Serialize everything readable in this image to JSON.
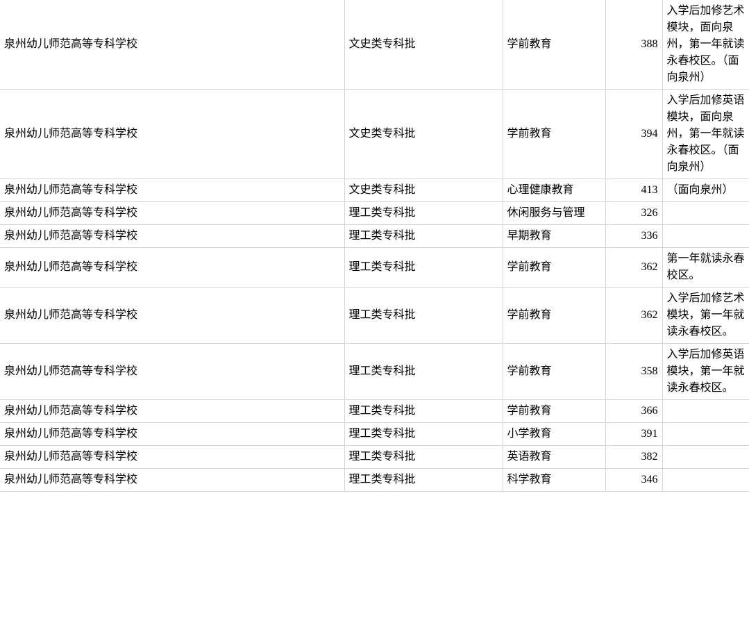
{
  "table": {
    "columns": {
      "school_width": 496,
      "category_width": 228,
      "major_width": 148,
      "score_width": 82,
      "remark_width": 125
    },
    "border_color": "#d4d4d4",
    "background_color": "#ffffff",
    "text_color": "#000000",
    "font_size": 16,
    "rows": [
      {
        "school": "泉州幼儿师范高等专科学校",
        "category": "文史类专科批",
        "major": "学前教育",
        "score": "388",
        "remark": "入学后加修艺术模块，面向泉州，第一年就读永春校区。（面向泉州）"
      },
      {
        "school": "泉州幼儿师范高等专科学校",
        "category": "文史类专科批",
        "major": "学前教育",
        "score": "394",
        "remark": "入学后加修英语模块，面向泉州，第一年就读永春校区。（面向泉州）"
      },
      {
        "school": "泉州幼儿师范高等专科学校",
        "category": "文史类专科批",
        "major": "心理健康教育",
        "score": "413",
        "remark": "（面向泉州）"
      },
      {
        "school": "泉州幼儿师范高等专科学校",
        "category": "理工类专科批",
        "major": "休闲服务与管理",
        "score": "326",
        "remark": ""
      },
      {
        "school": "泉州幼儿师范高等专科学校",
        "category": "理工类专科批",
        "major": "早期教育",
        "score": "336",
        "remark": ""
      },
      {
        "school": "泉州幼儿师范高等专科学校",
        "category": "理工类专科批",
        "major": "学前教育",
        "score": "362",
        "remark": "第一年就读永春校区。"
      },
      {
        "school": "泉州幼儿师范高等专科学校",
        "category": "理工类专科批",
        "major": "学前教育",
        "score": "362",
        "remark": "入学后加修艺术模块，第一年就读永春校区。"
      },
      {
        "school": "泉州幼儿师范高等专科学校",
        "category": "理工类专科批",
        "major": "学前教育",
        "score": "358",
        "remark": "入学后加修英语模块，第一年就读永春校区。"
      },
      {
        "school": "泉州幼儿师范高等专科学校",
        "category": "理工类专科批",
        "major": "学前教育",
        "score": "366",
        "remark": ""
      },
      {
        "school": "泉州幼儿师范高等专科学校",
        "category": "理工类专科批",
        "major": "小学教育",
        "score": "391",
        "remark": ""
      },
      {
        "school": "泉州幼儿师范高等专科学校",
        "category": "理工类专科批",
        "major": "英语教育",
        "score": "382",
        "remark": ""
      },
      {
        "school": "泉州幼儿师范高等专科学校",
        "category": "理工类专科批",
        "major": "科学教育",
        "score": "346",
        "remark": ""
      }
    ]
  }
}
